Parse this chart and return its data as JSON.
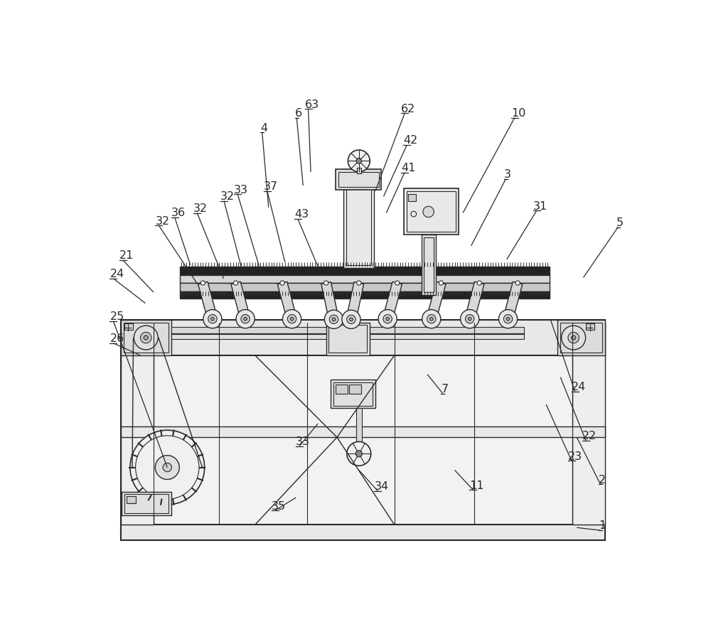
{
  "bg_color": "#ffffff",
  "line_color": "#2a2a2a",
  "label_color": "#2a2a2a",
  "label_fontsize": 11.5,
  "figsize": [
    10.0,
    8.92
  ],
  "dpi": 100
}
